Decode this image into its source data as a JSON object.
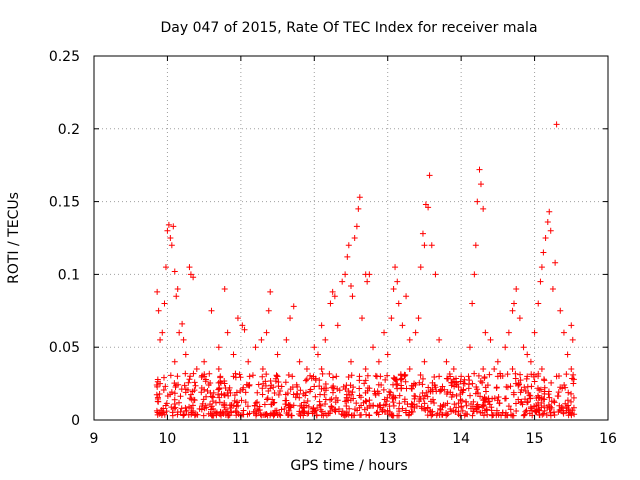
{
  "chart_data": {
    "type": "scatter",
    "title": "Day 047 of 2015, Rate Of TEC Index for receiver mala",
    "xlabel": "GPS time / hours",
    "ylabel": "ROTI / TECUs",
    "xlim": [
      9,
      16
    ],
    "ylim": [
      0,
      0.25
    ],
    "xticks": [
      9,
      10,
      11,
      12,
      13,
      14,
      15,
      16
    ],
    "yticks": [
      0,
      0.05,
      0.1,
      0.15,
      0.2,
      0.25
    ],
    "ytick_labels": [
      "0",
      "0.05",
      "0.1",
      "0.15",
      "0.2",
      "0.25"
    ],
    "grid": true,
    "marker": "+",
    "color": "#ff0000",
    "series": [
      {
        "name": "ROTI",
        "points": [
          [
            9.86,
            0.088
          ],
          [
            9.88,
            0.075
          ],
          [
            9.9,
            0.055
          ],
          [
            9.93,
            0.06
          ],
          [
            9.96,
            0.08
          ],
          [
            9.98,
            0.105
          ],
          [
            10.0,
            0.13
          ],
          [
            10.02,
            0.134
          ],
          [
            10.04,
            0.125
          ],
          [
            10.06,
            0.12
          ],
          [
            10.08,
            0.133
          ],
          [
            10.1,
            0.102
          ],
          [
            10.12,
            0.085
          ],
          [
            10.14,
            0.09
          ],
          [
            10.16,
            0.06
          ],
          [
            10.2,
            0.066
          ],
          [
            10.22,
            0.055
          ],
          [
            10.25,
            0.045
          ],
          [
            10.3,
            0.105
          ],
          [
            10.32,
            0.1
          ],
          [
            10.35,
            0.098
          ],
          [
            10.4,
            0.035
          ],
          [
            10.5,
            0.04
          ],
          [
            10.6,
            0.075
          ],
          [
            10.7,
            0.05
          ],
          [
            10.72,
            0.03
          ],
          [
            10.78,
            0.09
          ],
          [
            10.82,
            0.06
          ],
          [
            10.9,
            0.045
          ],
          [
            10.96,
            0.07
          ],
          [
            11.02,
            0.065
          ],
          [
            11.05,
            0.062
          ],
          [
            11.12,
            0.03
          ],
          [
            11.2,
            0.05
          ],
          [
            11.28,
            0.055
          ],
          [
            11.35,
            0.06
          ],
          [
            11.38,
            0.075
          ],
          [
            11.4,
            0.088
          ],
          [
            11.5,
            0.045
          ],
          [
            11.62,
            0.055
          ],
          [
            11.67,
            0.07
          ],
          [
            11.72,
            0.078
          ],
          [
            11.8,
            0.04
          ],
          [
            11.9,
            0.035
          ],
          [
            12.0,
            0.05
          ],
          [
            12.05,
            0.045
          ],
          [
            12.1,
            0.065
          ],
          [
            12.15,
            0.055
          ],
          [
            12.22,
            0.08
          ],
          [
            12.25,
            0.088
          ],
          [
            12.28,
            0.085
          ],
          [
            12.32,
            0.065
          ],
          [
            12.38,
            0.095
          ],
          [
            12.42,
            0.1
          ],
          [
            12.45,
            0.112
          ],
          [
            12.47,
            0.12
          ],
          [
            12.5,
            0.092
          ],
          [
            12.52,
            0.085
          ],
          [
            12.55,
            0.125
          ],
          [
            12.58,
            0.133
          ],
          [
            12.6,
            0.145
          ],
          [
            12.62,
            0.153
          ],
          [
            12.65,
            0.07
          ],
          [
            12.7,
            0.1
          ],
          [
            12.72,
            0.095
          ],
          [
            12.75,
            0.1
          ],
          [
            12.8,
            0.05
          ],
          [
            12.88,
            0.04
          ],
          [
            12.95,
            0.06
          ],
          [
            13.0,
            0.045
          ],
          [
            13.05,
            0.07
          ],
          [
            13.08,
            0.09
          ],
          [
            13.1,
            0.105
          ],
          [
            13.13,
            0.095
          ],
          [
            13.15,
            0.08
          ],
          [
            13.2,
            0.065
          ],
          [
            13.25,
            0.085
          ],
          [
            13.3,
            0.055
          ],
          [
            13.38,
            0.06
          ],
          [
            13.42,
            0.07
          ],
          [
            13.45,
            0.105
          ],
          [
            13.48,
            0.128
          ],
          [
            13.5,
            0.12
          ],
          [
            13.52,
            0.148
          ],
          [
            13.55,
            0.146
          ],
          [
            13.57,
            0.168
          ],
          [
            13.6,
            0.12
          ],
          [
            13.65,
            0.1
          ],
          [
            13.7,
            0.055
          ],
          [
            13.8,
            0.04
          ],
          [
            13.9,
            0.035
          ],
          [
            14.0,
            0.03
          ],
          [
            14.05,
            0.025
          ],
          [
            14.12,
            0.05
          ],
          [
            14.15,
            0.08
          ],
          [
            14.18,
            0.1
          ],
          [
            14.2,
            0.12
          ],
          [
            14.22,
            0.15
          ],
          [
            14.25,
            0.172
          ],
          [
            14.27,
            0.162
          ],
          [
            14.3,
            0.145
          ],
          [
            14.33,
            0.06
          ],
          [
            14.4,
            0.055
          ],
          [
            14.45,
            0.035
          ],
          [
            14.5,
            0.04
          ],
          [
            14.6,
            0.05
          ],
          [
            14.65,
            0.06
          ],
          [
            14.7,
            0.075
          ],
          [
            14.72,
            0.08
          ],
          [
            14.75,
            0.09
          ],
          [
            14.8,
            0.07
          ],
          [
            14.85,
            0.05
          ],
          [
            14.9,
            0.045
          ],
          [
            14.95,
            0.04
          ],
          [
            15.0,
            0.06
          ],
          [
            15.05,
            0.08
          ],
          [
            15.08,
            0.095
          ],
          [
            15.1,
            0.105
          ],
          [
            15.12,
            0.115
          ],
          [
            15.15,
            0.125
          ],
          [
            15.18,
            0.136
          ],
          [
            15.2,
            0.143
          ],
          [
            15.22,
            0.13
          ],
          [
            15.25,
            0.09
          ],
          [
            15.28,
            0.108
          ],
          [
            15.3,
            0.203
          ],
          [
            15.35,
            0.075
          ],
          [
            15.4,
            0.06
          ],
          [
            15.45,
            0.045
          ],
          [
            15.5,
            0.065
          ],
          [
            15.52,
            0.055
          ],
          [
            9.9,
            0.025
          ],
          [
            10.1,
            0.04
          ],
          [
            10.3,
            0.028
          ],
          [
            10.5,
            0.03
          ],
          [
            10.7,
            0.035
          ],
          [
            10.9,
            0.03
          ],
          [
            11.1,
            0.04
          ],
          [
            11.3,
            0.035
          ],
          [
            11.5,
            0.03
          ],
          [
            11.7,
            0.03
          ],
          [
            11.9,
            0.028
          ],
          [
            12.1,
            0.035
          ],
          [
            12.3,
            0.03
          ],
          [
            12.5,
            0.04
          ],
          [
            12.7,
            0.035
          ],
          [
            12.9,
            0.03
          ],
          [
            13.1,
            0.028
          ],
          [
            13.3,
            0.035
          ],
          [
            13.5,
            0.04
          ],
          [
            13.7,
            0.03
          ],
          [
            13.9,
            0.028
          ],
          [
            14.1,
            0.03
          ],
          [
            14.3,
            0.035
          ],
          [
            14.5,
            0.03
          ],
          [
            14.7,
            0.035
          ],
          [
            14.9,
            0.03
          ],
          [
            15.1,
            0.035
          ],
          [
            15.3,
            0.03
          ],
          [
            15.5,
            0.035
          ]
        ]
      }
    ],
    "baseline_band": {
      "description": "dense cluster of + marks",
      "x_range": [
        9.85,
        15.55
      ],
      "y_range": [
        0.003,
        0.032
      ]
    }
  }
}
